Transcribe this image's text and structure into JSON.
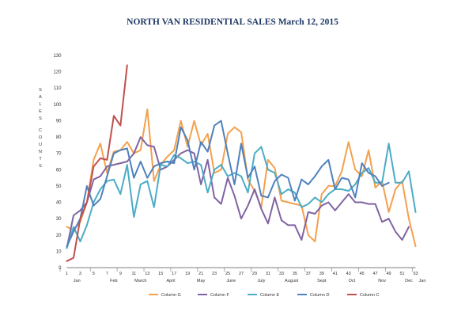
{
  "chart_data": {
    "type": "line",
    "title": "NORTH VAN RESIDENTIAL SALES  March 12, 2015",
    "ylabel": "SALES COUNTS",
    "ylim": [
      0,
      130
    ],
    "yticks": [
      0,
      10,
      20,
      30,
      40,
      50,
      60,
      70,
      80,
      90,
      100,
      110,
      120,
      130
    ],
    "xlim": [
      1,
      53
    ],
    "xticks": [
      1,
      3,
      5,
      7,
      9,
      11,
      13,
      15,
      17,
      19,
      21,
      23,
      25,
      27,
      29,
      31,
      33,
      35,
      37,
      39,
      41,
      43,
      45,
      47,
      49,
      51,
      53
    ],
    "months": [
      {
        "label": "Jan",
        "x": 2.5
      },
      {
        "label": "Feb",
        "x": 8
      },
      {
        "label": "March",
        "x": 12
      },
      {
        "label": "April",
        "x": 16.5
      },
      {
        "label": "May",
        "x": 21
      },
      {
        "label": "June",
        "x": 25.5
      },
      {
        "label": "July",
        "x": 30
      },
      {
        "label": "August",
        "x": 34.5
      },
      {
        "label": "Sept",
        "x": 39
      },
      {
        "label": "Oct",
        "x": 43.5
      },
      {
        "label": "Nov",
        "x": 48
      },
      {
        "label": "Dec",
        "x": 52
      },
      {
        "label": "Jan",
        "x": 54
      }
    ],
    "grid": false,
    "legend_position": "bottom",
    "series": [
      {
        "name": "Column G",
        "color": "#f4a04d",
        "values": [
          25,
          23,
          28,
          40,
          66,
          76,
          58,
          71,
          72,
          77,
          70,
          72,
          97,
          53,
          63,
          68,
          72,
          90,
          74,
          90,
          75,
          82,
          58,
          60,
          82,
          86,
          83,
          54,
          47,
          37,
          66,
          61,
          41,
          40,
          39,
          38,
          20,
          16,
          45,
          50,
          50,
          59,
          77,
          60,
          56,
          72,
          49,
          53,
          34,
          48,
          53,
          30,
          13
        ]
      },
      {
        "name": "Column F",
        "color": "#8064a2",
        "values": [
          12,
          32,
          35,
          40,
          54,
          56,
          62,
          63,
          64,
          65,
          70,
          80,
          75,
          74,
          60,
          62,
          66,
          70,
          72,
          70,
          51,
          66,
          43,
          39,
          55,
          44,
          30,
          38,
          48,
          36,
          27,
          43,
          29,
          26,
          26,
          17,
          34,
          33,
          38,
          40,
          35,
          40,
          45,
          40,
          40,
          39,
          39,
          28,
          30,
          22,
          17,
          25
        ]
      },
      {
        "name": "Column E",
        "color": "#4bacc6",
        "values": [
          12,
          25,
          16,
          26,
          40,
          48,
          53,
          54,
          45,
          63,
          31,
          51,
          53,
          37,
          63,
          62,
          69,
          67,
          64,
          65,
          63,
          46,
          60,
          63,
          56,
          58,
          56,
          46,
          70,
          74,
          60,
          58,
          45,
          48,
          46,
          37,
          39,
          43,
          40,
          45,
          48,
          48,
          47,
          51,
          58,
          61,
          52,
          52,
          76,
          52,
          52,
          59,
          34
        ]
      },
      {
        "name": "Column D",
        "color": "#4f81bd",
        "values": [
          13,
          22,
          30,
          50,
          38,
          42,
          56,
          70,
          72,
          73,
          55,
          65,
          55,
          62,
          64,
          65,
          64,
          86,
          78,
          60,
          77,
          71,
          87,
          90,
          70,
          51,
          76,
          55,
          62,
          44,
          43,
          53,
          57,
          55,
          41,
          54,
          51,
          56,
          62,
          66,
          48,
          55,
          54,
          43,
          64,
          58,
          56,
          50,
          52
        ]
      },
      {
        "name": "Column C",
        "color": "#c0504d",
        "values": [
          4,
          6,
          30,
          40,
          62,
          67,
          66,
          93,
          87,
          124
        ]
      }
    ]
  }
}
